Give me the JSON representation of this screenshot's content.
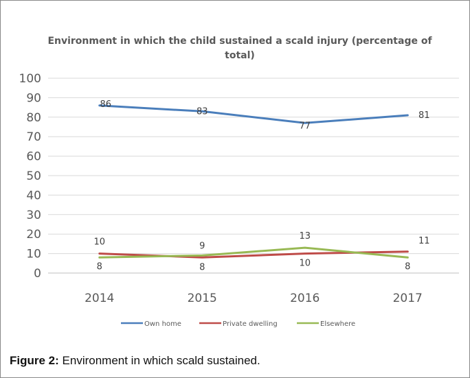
{
  "chart_data": {
    "type": "line",
    "title_line1": "Environment in which the child sustained a scald injury (percentage of",
    "title_line2": "total)",
    "categories": [
      "2014",
      "2015",
      "2016",
      "2017"
    ],
    "ylim": [
      0,
      100
    ],
    "yticks": [
      "0",
      "10",
      "20",
      "30",
      "40",
      "50",
      "60",
      "70",
      "80",
      "90",
      "100"
    ],
    "grid": true,
    "legend_position": "bottom",
    "series": [
      {
        "name": "Own home",
        "color": "#4a7ebb",
        "values": [
          86,
          83,
          77,
          81
        ]
      },
      {
        "name": "Private dwelling",
        "color": "#be4b48",
        "values": [
          10,
          8,
          10,
          11
        ]
      },
      {
        "name": "Elsewhere",
        "color": "#98b954",
        "values": [
          8,
          9,
          13,
          8
        ]
      }
    ]
  },
  "caption": {
    "label": "Figure 2:",
    "text": " Environment in which scald sustained."
  }
}
